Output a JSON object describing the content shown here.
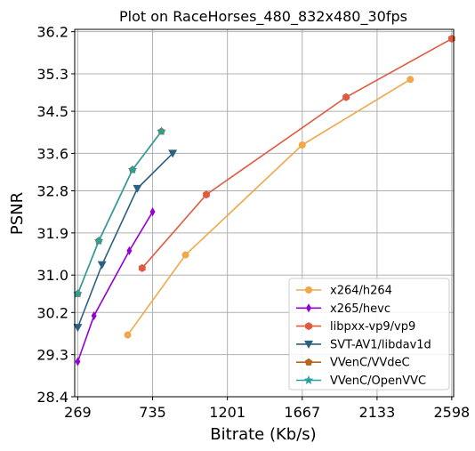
{
  "chart_data": {
    "type": "line",
    "title": "Plot on RaceHorses_480_832x480_30fps",
    "xlabel": "Bitrate (Kb/s)",
    "ylabel": "PSNR",
    "xlim": [
      250,
      2610
    ],
    "ylim": [
      28.4,
      36.25
    ],
    "xticks": [
      "269",
      "735",
      "1201",
      "1667",
      "2133",
      "2598"
    ],
    "yticks": [
      "28.4",
      "29.3",
      "30.2",
      "31.0",
      "31.9",
      "32.8",
      "33.6",
      "34.5",
      "35.3",
      "36.2"
    ],
    "grid": true,
    "legend_position": "lower-right",
    "series": [
      {
        "name": "x264/h264",
        "color": "#f0a848",
        "marker": "circle",
        "x": [
          580,
          940,
          1667,
          2340
        ],
        "y": [
          29.72,
          31.43,
          33.78,
          35.18
        ]
      },
      {
        "name": "x265/hevc",
        "color": "#9400d3",
        "marker": "thin-diamond",
        "x": [
          269,
          370,
          590,
          735
        ],
        "y": [
          29.15,
          30.13,
          31.52,
          32.35
        ]
      },
      {
        "name": "libpxx-vp9/vp9",
        "color": "#e05a40",
        "marker": "hexagon",
        "x": [
          670,
          1070,
          1940,
          2598
        ],
        "y": [
          31.15,
          32.72,
          34.8,
          36.05
        ]
      },
      {
        "name": "SVT-AV1/libdav1d",
        "color": "#2d5f80",
        "marker": "triangle-down",
        "x": [
          269,
          420,
          640,
          860
        ],
        "y": [
          29.88,
          31.22,
          32.85,
          33.6
        ]
      },
      {
        "name": "VVenC/VVdeC",
        "color": "#b5651d",
        "marker": "pentagon",
        "x": [
          269,
          400,
          610,
          790
        ],
        "y": [
          30.6,
          31.73,
          33.25,
          34.07
        ]
      },
      {
        "name": "VVenC/OpenVVC",
        "color": "#28a0a0",
        "marker": "star",
        "x": [
          269,
          400,
          610,
          790
        ],
        "y": [
          30.6,
          31.73,
          33.25,
          34.07
        ]
      }
    ]
  }
}
